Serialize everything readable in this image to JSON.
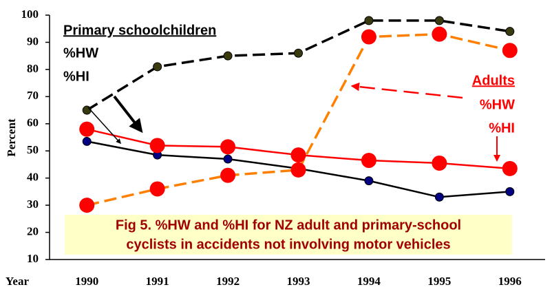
{
  "chart_data": {
    "type": "line",
    "y_label": "Percent",
    "x_label": "Year",
    "categories": [
      "1990",
      "1991",
      "1992",
      "1993",
      "1994",
      "1995",
      "1996"
    ],
    "ylim": [
      10,
      100
    ],
    "yticks": [
      10,
      20,
      30,
      40,
      50,
      60,
      70,
      80,
      90,
      100
    ],
    "series": [
      {
        "color": "#000000",
        "dashed": true,
        "marker_color": "#3a3a10",
        "marker": "small",
        "values": [
          65,
          81,
          85,
          86,
          98,
          98,
          94
        ]
      },
      {
        "color": "#000000",
        "dashed": false,
        "marker_color": "#000080",
        "marker": "small",
        "values": [
          53.5,
          48.5,
          47,
          43.5,
          39,
          33,
          35
        ]
      },
      {
        "color": "#ff8000",
        "dashed": true,
        "marker_color": "#ff0000",
        "marker": "large",
        "values": [
          30,
          36,
          41,
          43,
          92,
          93,
          87
        ]
      },
      {
        "color": "#ff0000",
        "dashed": false,
        "marker_color": "#ff0000",
        "marker": "large",
        "values": [
          58,
          52,
          51.5,
          48.5,
          46.5,
          45.5,
          43.5
        ]
      }
    ],
    "annotations": [
      "Primary schoolchildren",
      "%HW",
      "%HI",
      "Adults",
      "%HW",
      "%HI"
    ],
    "caption": [
      "Fig 5. %HW and %HI for NZ adult and primary-school",
      "cyclists in accidents not involving motor vehicles"
    ]
  }
}
